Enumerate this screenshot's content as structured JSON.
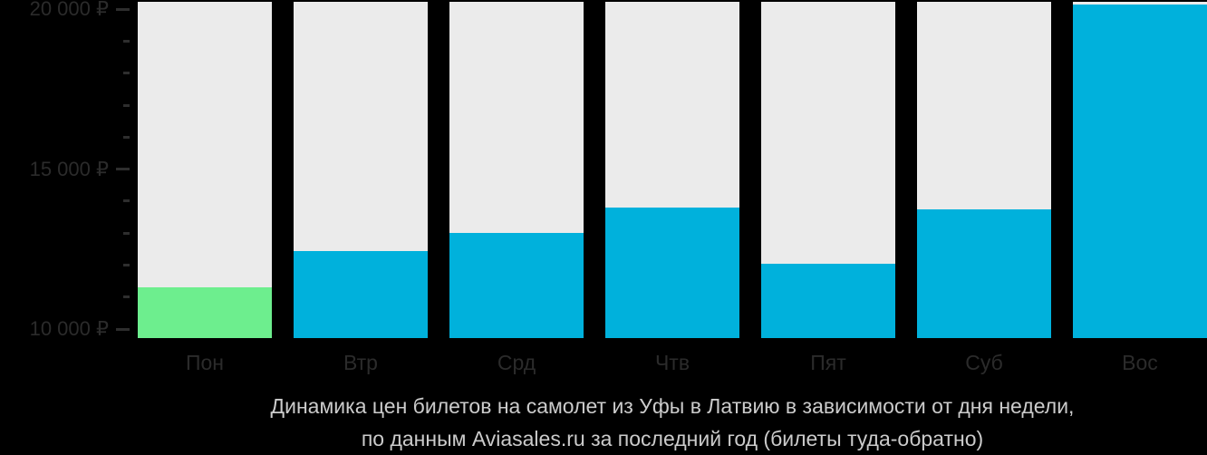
{
  "caption": {
    "line1": "Динамика цен билетов на самолет из Уфы в Латвию в зависимости от дня недели,",
    "line2": "по данным Aviasales.ru за последний год (билеты туда-обратно)"
  },
  "chart_data": {
    "type": "bar",
    "title": "Динамика цен билетов на самолет из Уфы в Латвию в зависимости от дня недели, по данным Aviasales.ru за последний год (билеты туда-обратно)",
    "categories": [
      "Пон",
      "Втр",
      "Срд",
      "Чтв",
      "Пят",
      "Суб",
      "Вос"
    ],
    "values": [
      11300,
      12450,
      13000,
      13800,
      12050,
      13750,
      20150
    ],
    "currency": "₽",
    "highlight_index": 0,
    "xlabel": "",
    "ylabel": "",
    "ylim": [
      9717,
      20232
    ],
    "grid": false,
    "legend": false,
    "y_ticks": [
      {
        "value": 20000,
        "label": "20 000 ₽"
      },
      {
        "value": 15000,
        "label": "15 000 ₽"
      },
      {
        "value": 10000,
        "label": "10 000 ₽"
      }
    ],
    "minor_tick_step": 1000,
    "colors": {
      "bar_default": "#00b1dc",
      "bar_highlight": "#6dee8e",
      "column_background": "#ebebeb",
      "axis_text": "#2b2b2b",
      "tick_mark": "#2e2e2e",
      "caption_text": "#cbcbcb",
      "page_background": "#000000"
    }
  }
}
